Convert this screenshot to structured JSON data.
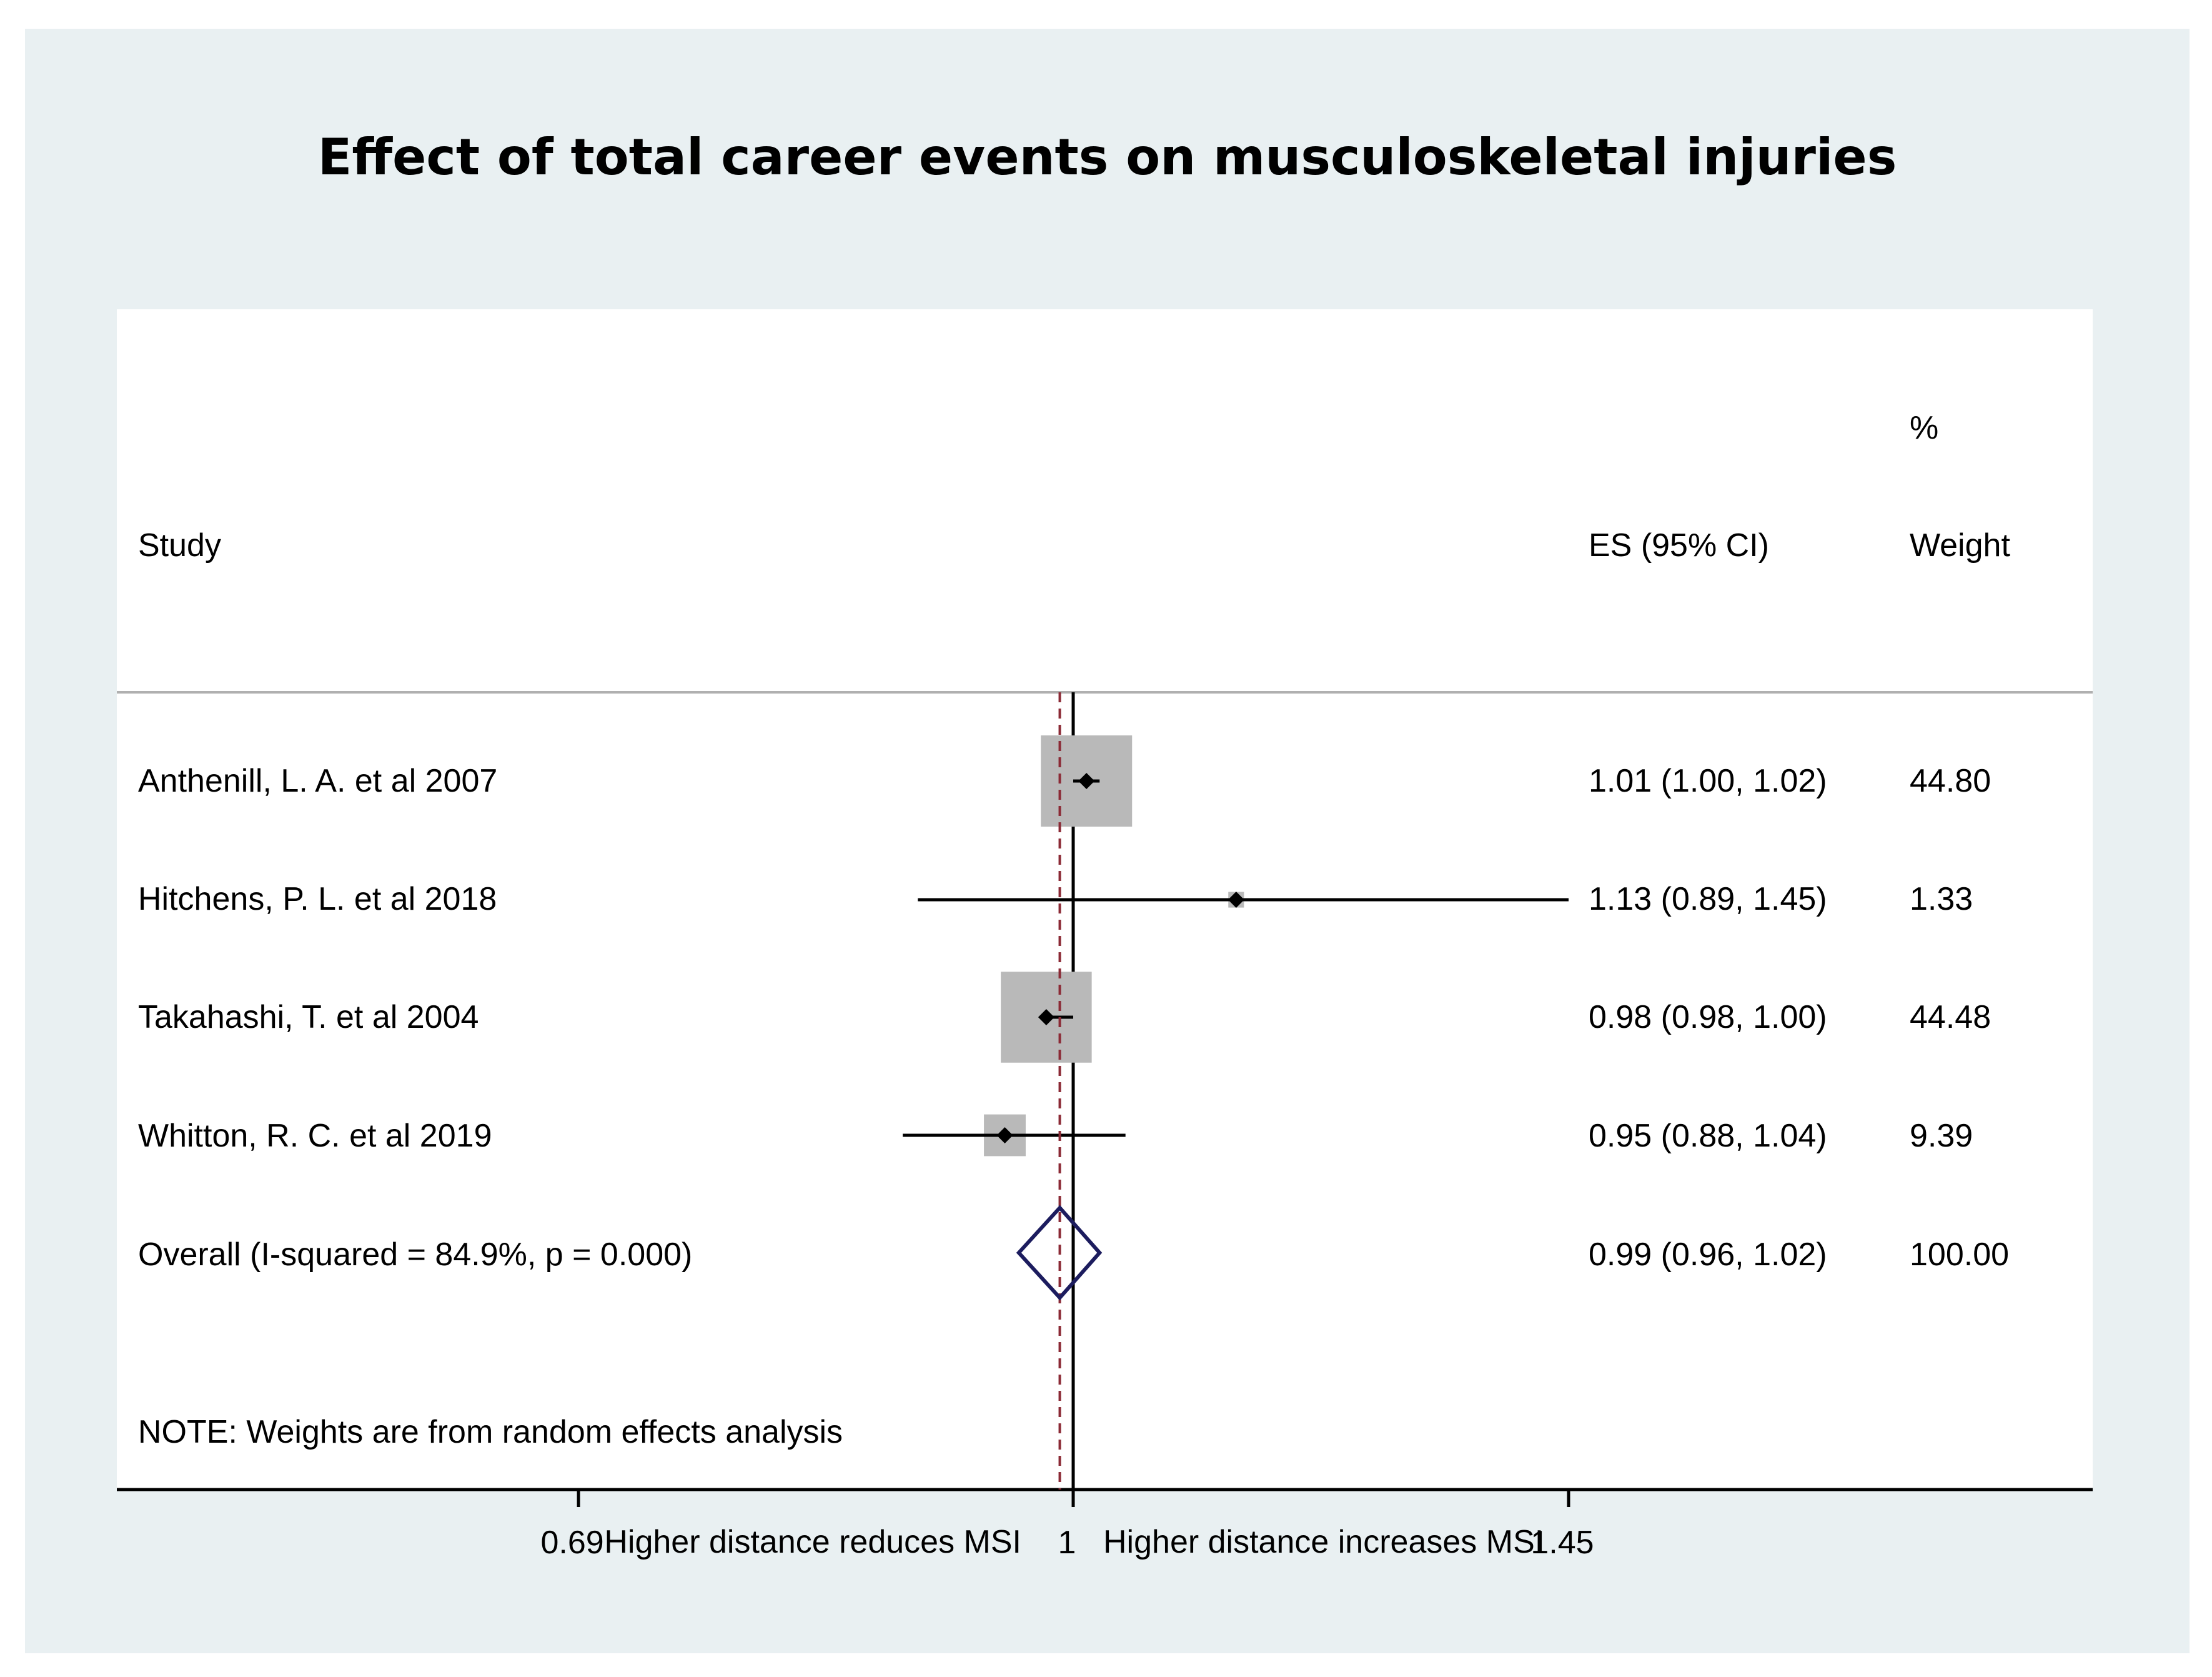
{
  "chart_data": {
    "type": "forest",
    "title": "Effect of total career events on musculoskeletal injuries",
    "columns": {
      "study": "Study",
      "es": "ES (95% CI)",
      "weight_top": "%",
      "weight": "Weight"
    },
    "scale": "log",
    "xlim": [
      0.69,
      1.45
    ],
    "null_value": 1,
    "pooled_line": 0.99,
    "ticks": [
      {
        "value": 0.69,
        "label": "0.69"
      },
      {
        "value": 1,
        "label": "1"
      },
      {
        "value": 1.45,
        "label": "1.45"
      }
    ],
    "xlabel_left": "Higher distance reduces MSI",
    "xlabel_right": "Higher distance increases MSI",
    "studies": [
      {
        "label": "Anthenill, L. A. et al 2007",
        "es": 1.01,
        "lo": 1.0,
        "hi": 1.02,
        "weight": 44.8,
        "es_text": "1.01 (1.00, 1.02)",
        "weight_text": "44.80"
      },
      {
        "label": "Hitchens, P. L. et al 2018",
        "es": 1.13,
        "lo": 0.89,
        "hi": 1.45,
        "weight": 1.33,
        "es_text": "1.13 (0.89, 1.45)",
        "weight_text": "1.33"
      },
      {
        "label": "Takahashi, T. et al 2004",
        "es": 0.98,
        "lo": 0.98,
        "hi": 1.0,
        "weight": 44.48,
        "es_text": "0.98 (0.98, 1.00)",
        "weight_text": "44.48"
      },
      {
        "label": "Whitton, R. C. et al 2019",
        "es": 0.95,
        "lo": 0.88,
        "hi": 1.04,
        "weight": 9.39,
        "es_text": "0.95 (0.88, 1.04)",
        "weight_text": "9.39"
      }
    ],
    "overall": {
      "label": "Overall  (I-squared = 84.9%, p = 0.000)",
      "es": 0.99,
      "lo": 0.96,
      "hi": 1.02,
      "es_text": "0.99 (0.96, 1.02)",
      "weight_text": "100.00"
    },
    "note": "NOTE: Weights are from random effects analysis"
  },
  "colors": {
    "box": "#b9b9b9",
    "diamond": "#1c1c5e",
    "pooled_line": "#8b2a35",
    "axis": "#000000"
  }
}
